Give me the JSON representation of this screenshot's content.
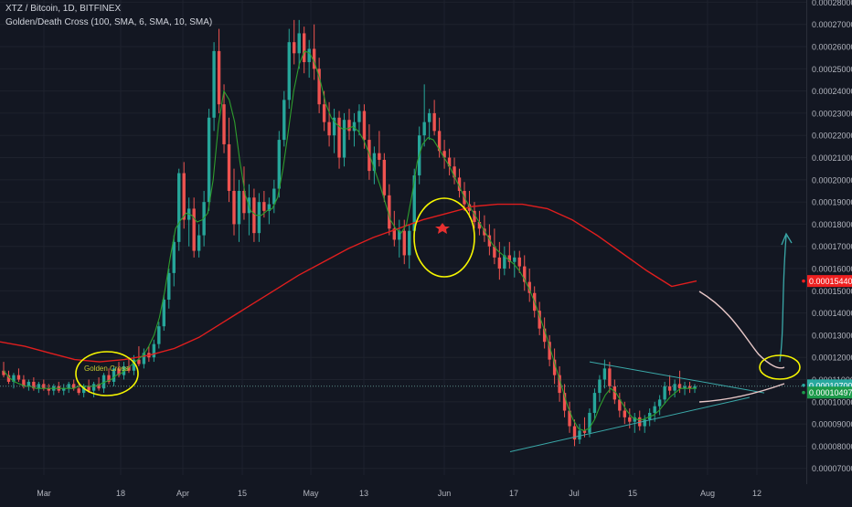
{
  "header": {
    "symbol_line": "XTZ / Bitcoin, 1D, BITFINEX",
    "indicator_line": "Golden/Death Cross (100, SMA, 6, SMA, 10, SMA)"
  },
  "colors": {
    "background": "#131722",
    "grid": "#1e222d",
    "up": "#26a69a",
    "down": "#ef5350",
    "sma_long": "#e01e1e",
    "sma_short": "#2e9e2e",
    "axis_text": "#b2b5be",
    "annotation_yellow": "#f5f500",
    "trendline": "#3aa8a8",
    "projection": "#e8c8c8",
    "arrow": "#3aa8a8",
    "price_tag_red": "#ef2020",
    "price_tag_green": "#1c9a4a",
    "price_tag_teal": "#29a9a0"
  },
  "chart_data": {
    "type": "candlestick",
    "title": "XTZ / Bitcoin, 1D, BITFINEX",
    "indicator": "Golden/Death Cross (100, SMA, 6, SMA, 10, SMA)",
    "ylim": [
      6.7e-05,
      0.000281
    ],
    "y_ticks": [
      "0.00028000",
      "0.00027000",
      "0.00026000",
      "0.00025000",
      "0.00024000",
      "0.00023000",
      "0.00022000",
      "0.00021000",
      "0.00020000",
      "0.00019000",
      "0.00018000",
      "0.00017000",
      "0.00016000",
      "0.00015000",
      "0.00014000",
      "0.00013000",
      "0.00012000",
      "0.00011000",
      "0.00010000",
      "0.00009000",
      "0.00008000",
      "0.00007000"
    ],
    "x_ticks": [
      "Mar",
      "18",
      "Apr",
      "15",
      "May",
      "13",
      "Jun",
      "17",
      "Jul",
      "15",
      "Aug",
      "12"
    ],
    "price_tags": [
      {
        "label": "0.00015440",
        "value": 0.0001544,
        "color_key": "price_tag_red"
      },
      {
        "label": "0.00010700",
        "value": 0.000107,
        "color_key": "price_tag_teal"
      },
      {
        "label": "0.00010497",
        "value": 0.00010497,
        "color_key": "price_tag_green"
      }
    ],
    "annotations": {
      "golden_cross_label": "Golden Cross"
    },
    "candles": [
      [
        0.000114,
        0.000118,
        0.000111,
        0.000112
      ],
      [
        0.000112,
        0.000114,
        0.000108,
        0.000109
      ],
      [
        0.000109,
        0.000113,
        0.000106,
        0.000112
      ],
      [
        0.000112,
        0.000115,
        0.000109,
        0.00011
      ],
      [
        0.00011,
        0.000112,
        0.000106,
        0.000107
      ],
      [
        0.000107,
        0.00011,
        0.000105,
        0.000109
      ],
      [
        0.000109,
        0.000111,
        0.000105,
        0.000106
      ],
      [
        0.000106,
        0.000109,
        0.000104,
        0.000108
      ],
      [
        0.000108,
        0.00011,
        0.000105,
        0.000106
      ],
      [
        0.000106,
        0.000108,
        0.000103,
        0.000105
      ],
      [
        0.000105,
        0.000108,
        0.000103,
        0.000107
      ],
      [
        0.000107,
        0.000109,
        0.000104,
        0.000105
      ],
      [
        0.000105,
        0.000108,
        0.000103,
        0.000106
      ],
      [
        0.000106,
        0.000109,
        0.000104,
        0.000108
      ],
      [
        0.000108,
        0.00011,
        0.000105,
        0.000106
      ],
      [
        0.000106,
        0.000108,
        0.000103,
        0.000104
      ],
      [
        0.000104,
        0.000108,
        0.000102,
        0.000107
      ],
      [
        0.000107,
        0.00011,
        0.000104,
        0.000105
      ],
      [
        0.000105,
        0.000109,
        0.000102,
        0.000108
      ],
      [
        0.000108,
        0.000111,
        0.000105,
        0.000106
      ],
      [
        0.000106,
        0.000113,
        0.000104,
        0.000112
      ],
      [
        0.000112,
        0.000115,
        0.000108,
        0.000109
      ],
      [
        0.000109,
        0.000116,
        0.000107,
        0.000115
      ],
      [
        0.000115,
        0.000118,
        0.000111,
        0.000112
      ],
      [
        0.000112,
        0.000118,
        0.00011,
        0.000116
      ],
      [
        0.000116,
        0.00012,
        0.000113,
        0.000114
      ],
      [
        0.000114,
        0.000121,
        0.000112,
        0.000119
      ],
      [
        0.000119,
        0.000125,
        0.000116,
        0.000117
      ],
      [
        0.000117,
        0.000124,
        0.000115,
        0.000122
      ],
      [
        0.000122,
        0.000125,
        0.000118,
        0.00012
      ],
      [
        0.00012,
        0.000128,
        0.000118,
        0.000126
      ],
      [
        0.000126,
        0.000136,
        0.000124,
        0.000134
      ],
      [
        0.000134,
        0.000148,
        0.000132,
        0.000146
      ],
      [
        0.000146,
        0.00016,
        0.000142,
        0.000158
      ],
      [
        0.000158,
        0.000175,
        0.000152,
        0.000172
      ],
      [
        0.000172,
        0.000205,
        0.000168,
        0.000203
      ],
      [
        0.000203,
        0.000208,
        0.000178,
        0.000182
      ],
      [
        0.000182,
        0.000192,
        0.00017,
        0.000187
      ],
      [
        0.000187,
        0.000192,
        0.000165,
        0.000168
      ],
      [
        0.000168,
        0.00018,
        0.000165,
        0.000175
      ],
      [
        0.000175,
        0.000195,
        0.00017,
        0.00019
      ],
      [
        0.00019,
        0.000232,
        0.000186,
        0.000228
      ],
      [
        0.000228,
        0.000262,
        0.000222,
        0.000258
      ],
      [
        0.000258,
        0.000268,
        0.00023,
        0.000234
      ],
      [
        0.000234,
        0.000243,
        0.000212,
        0.000216
      ],
      [
        0.000216,
        0.000228,
        0.00019,
        0.000195
      ],
      [
        0.000195,
        0.000205,
        0.000175,
        0.00018
      ],
      [
        0.00018,
        0.0002,
        0.000172,
        0.000195
      ],
      [
        0.000195,
        0.000206,
        0.000182,
        0.000185
      ],
      [
        0.000185,
        0.000198,
        0.000175,
        0.000192
      ],
      [
        0.000192,
        0.000196,
        0.000172,
        0.000176
      ],
      [
        0.000176,
        0.000194,
        0.000172,
        0.00019
      ],
      [
        0.00019,
        0.000195,
        0.000183,
        0.000186
      ],
      [
        0.000186,
        0.000192,
        0.00018,
        0.000189
      ],
      [
        0.000189,
        0.0002,
        0.000185,
        0.000196
      ],
      [
        0.000196,
        0.000222,
        0.000192,
        0.000218
      ],
      [
        0.000218,
        0.00024,
        0.000215,
        0.000236
      ],
      [
        0.000236,
        0.000268,
        0.000232,
        0.000262
      ],
      [
        0.000262,
        0.000272,
        0.000252,
        0.000257
      ],
      [
        0.000257,
        0.000272,
        0.00025,
        0.000266
      ],
      [
        0.000266,
        0.000269,
        0.000248,
        0.000253
      ],
      [
        0.000253,
        0.000263,
        0.000246,
        0.000259
      ],
      [
        0.000259,
        0.00027,
        0.000245,
        0.00025
      ],
      [
        0.00025,
        0.000255,
        0.00023,
        0.000234
      ],
      [
        0.000234,
        0.00024,
        0.000222,
        0.000226
      ],
      [
        0.000226,
        0.000235,
        0.000215,
        0.00022
      ],
      [
        0.00022,
        0.000232,
        0.000212,
        0.000228
      ],
      [
        0.000228,
        0.000231,
        0.000205,
        0.00021
      ],
      [
        0.00021,
        0.00023,
        0.000206,
        0.000227
      ],
      [
        0.000227,
        0.000232,
        0.000218,
        0.000222
      ],
      [
        0.000222,
        0.00023,
        0.000215,
        0.000226
      ],
      [
        0.000226,
        0.000234,
        0.00022,
        0.000231
      ],
      [
        0.000231,
        0.000234,
        0.000214,
        0.000218
      ],
      [
        0.000218,
        0.000225,
        0.0002,
        0.000204
      ],
      [
        0.000204,
        0.000215,
        0.000198,
        0.000212
      ],
      [
        0.000212,
        0.000222,
        0.000206,
        0.000209
      ],
      [
        0.000209,
        0.000212,
        0.00019,
        0.000193
      ],
      [
        0.000193,
        0.000198,
        0.000175,
        0.000178
      ],
      [
        0.000178,
        0.000186,
        0.00017,
        0.000173
      ],
      [
        0.000173,
        0.000182,
        0.000165,
        0.000177
      ],
      [
        0.000177,
        0.000182,
        0.000162,
        0.000166
      ],
      [
        0.000166,
        0.00018,
        0.00016,
        0.000177
      ],
      [
        0.000177,
        0.000205,
        0.000174,
        0.000202
      ],
      [
        0.000202,
        0.000224,
        0.000198,
        0.00022
      ],
      [
        0.00022,
        0.000243,
        0.000215,
        0.000226
      ],
      [
        0.000226,
        0.000232,
        0.000218,
        0.00023
      ],
      [
        0.00023,
        0.000236,
        0.00022,
        0.000222
      ],
      [
        0.000222,
        0.000228,
        0.00021,
        0.000213
      ],
      [
        0.000213,
        0.000218,
        0.000205,
        0.00021
      ],
      [
        0.00021,
        0.000214,
        0.000202,
        0.000206
      ],
      [
        0.000206,
        0.00021,
        0.000198,
        0.000201
      ],
      [
        0.000201,
        0.000205,
        0.000192,
        0.000195
      ],
      [
        0.000195,
        0.000199,
        0.000186,
        0.000189
      ],
      [
        0.000189,
        0.000195,
        0.000183,
        0.000186
      ],
      [
        0.000186,
        0.00019,
        0.000178,
        0.000181
      ],
      [
        0.000181,
        0.000186,
        0.000175,
        0.000178
      ],
      [
        0.000178,
        0.000184,
        0.000172,
        0.000175
      ],
      [
        0.000175,
        0.00018,
        0.000166,
        0.00017
      ],
      [
        0.00017,
        0.000178,
        0.000162,
        0.000165
      ],
      [
        0.000165,
        0.000172,
        0.000155,
        0.00016
      ],
      [
        0.00016,
        0.00017,
        0.000157,
        0.000166
      ],
      [
        0.000166,
        0.000172,
        0.00016,
        0.000163
      ],
      [
        0.000163,
        0.000168,
        0.000156,
        0.000165
      ],
      [
        0.000165,
        0.000168,
        0.000158,
        0.000161
      ],
      [
        0.000161,
        0.000166,
        0.00015,
        0.000154
      ],
      [
        0.000154,
        0.00016,
        0.000145,
        0.000149
      ],
      [
        0.000149,
        0.000152,
        0.000138,
        0.000141
      ],
      [
        0.000141,
        0.000145,
        0.00013,
        0.000133
      ],
      [
        0.000133,
        0.000138,
        0.000124,
        0.000127
      ],
      [
        0.000127,
        0.00013,
        0.000116,
        0.000119
      ],
      [
        0.000119,
        0.000124,
        0.000108,
        0.000112
      ],
      [
        0.000112,
        0.000116,
        0.0001,
        0.000104
      ],
      [
        0.000104,
        0.000108,
        9.3e-05,
        9.6e-05
      ],
      [
        9.6e-05,
        0.0001,
        8.6e-05,
        8.9e-05
      ],
      [
        8.9e-05,
        9.2e-05,
        8e-05,
        8.3e-05
      ],
      [
        8.3e-05,
        9e-05,
        8.1e-05,
        8.7e-05
      ],
      [
        8.7e-05,
        9.3e-05,
        8.4e-05,
        8.6e-05
      ],
      [
        8.6e-05,
        9.7e-05,
        8.4e-05,
        9.5e-05
      ],
      [
        9.5e-05,
        0.000106,
        9.2e-05,
        0.000104
      ],
      [
        0.000104,
        0.000112,
        0.0001,
        0.00011
      ],
      [
        0.00011,
        0.000119,
        0.000106,
        0.000115
      ],
      [
        0.000115,
        0.000118,
        0.000104,
        0.000107
      ],
      [
        0.000107,
        0.00011,
        9.9e-05,
        0.000101
      ],
      [
        0.000101,
        0.000104,
        9.3e-05,
        9.6e-05
      ],
      [
        9.6e-05,
        0.0001,
        9e-05,
        9.3e-05
      ],
      [
        9.3e-05,
        9.7e-05,
        8.8e-05,
        9.1e-05
      ],
      [
        9.1e-05,
        9.5e-05,
        8.6e-05,
        9.3e-05
      ],
      [
        9.3e-05,
        9.6e-05,
        8.7e-05,
        8.9e-05
      ],
      [
        8.9e-05,
        9.4e-05,
        8.6e-05,
        9.2e-05
      ],
      [
        9.2e-05,
        9.7e-05,
        8.9e-05,
        9.5e-05
      ],
      [
        9.5e-05,
        0.0001,
        9.1e-05,
        9.8e-05
      ],
      [
        9.8e-05,
        0.000103,
        9.4e-05,
        0.000101
      ],
      [
        0.000101,
        0.000109,
        9.9e-05,
        0.000107
      ],
      [
        0.000107,
        0.000112,
        0.000103,
        0.000105
      ],
      [
        0.000105,
        0.00011,
        0.000102,
        0.000108
      ],
      [
        0.000108,
        0.000114,
        0.000104,
        0.000106
      ],
      [
        0.000106,
        0.000109,
        0.000103,
        0.000107
      ],
      [
        0.000107,
        0.000109,
        0.000104,
        0.000106
      ],
      [
        0.000106,
        0.000108,
        0.000104,
        0.000107
      ]
    ],
    "sma_long": [
      0.000127,
      0.000125,
      0.000122,
      0.000119,
      0.000118,
      0.000119,
      0.000121,
      0.000124,
      0.000129,
      0.000136,
      0.000143,
      0.00015,
      0.000157,
      0.000163,
      0.000169,
      0.000174,
      0.000178,
      0.000182,
      0.000185,
      0.000188,
      0.000189,
      0.000189,
      0.000187,
      0.000182,
      0.000175,
      0.000167,
      0.000159,
      0.000152,
      0.0001544
    ],
    "sma_short": [
      0.000114,
      0.000111,
      0.000109,
      0.000108,
      0.000107,
      0.000107,
      0.000106,
      0.000106,
      0.000106,
      0.000106,
      0.000106,
      0.000106,
      0.000106,
      0.000106,
      0.000107,
      0.000107,
      0.000107,
      0.000107,
      0.000108,
      0.000109,
      0.00011,
      0.000112,
      0.000113,
      0.000115,
      0.000117,
      0.000119,
      0.000121,
      0.000125,
      0.00013,
      0.000138,
      0.00015,
      0.000165,
      0.000178,
      0.000182,
      0.000185,
      0.000184,
      0.000181,
      0.000182,
      0.000185,
      0.0002,
      0.000225,
      0.00024,
      0.000236,
      0.000226,
      0.000208,
      0.000193,
      0.000186,
      0.000184,
      0.000184,
      0.000186,
      0.000187,
      0.000192,
      0.000205,
      0.000222,
      0.00024,
      0.000252,
      0.000258,
      0.000257,
      0.000252,
      0.000244,
      0.000234,
      0.000228,
      0.000225,
      0.000223,
      0.000223,
      0.000224,
      0.000222,
      0.000218,
      0.000212,
      0.000205,
      0.000198,
      0.00019,
      0.000182,
      0.000178,
      0.000176,
      0.00018,
      0.000193,
      0.000208,
      0.000216,
      0.000219,
      0.000218,
      0.000214,
      0.00021,
      0.000206,
      0.000201,
      0.000196,
      0.000191,
      0.000187,
      0.000183,
      0.000179,
      0.000175,
      0.000171,
      0.000168,
      0.000166,
      0.000164,
      0.000162,
      0.000159,
      0.000155,
      0.00015,
      0.000144,
      0.000137,
      0.00013,
      0.000122,
      0.000114,
      0.000106,
      9.8e-05,
      9.2e-05,
      8.8e-05,
      8.7e-05,
      8.8e-05,
      9.2e-05,
      9.8e-05,
      0.000103,
      0.000106,
      0.000104,
      0.0001,
      9.6e-05,
      9.3e-05,
      9.2e-05,
      9.2e-05,
      9.3e-05,
      9.4e-05,
      9.6e-05,
      9.9e-05,
      0.000102,
      0.000104,
      0.000106,
      0.000106,
      0.000106,
      0.000106
    ]
  }
}
